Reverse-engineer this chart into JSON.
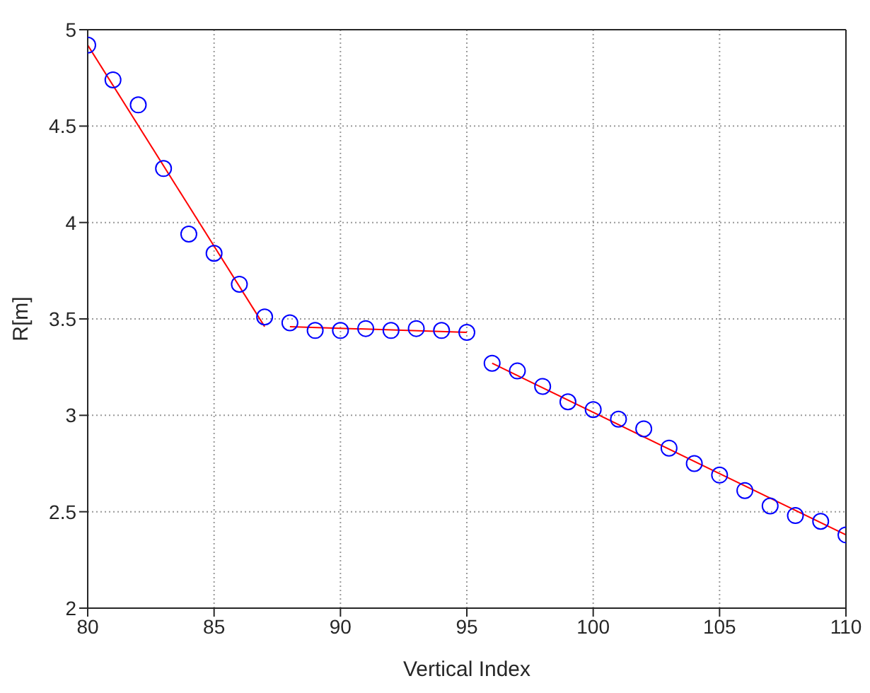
{
  "chart_data": {
    "type": "scatter",
    "xlabel": "Vertical Index",
    "ylabel": "R[m]",
    "xlim": [
      80,
      110
    ],
    "xticks": [
      80,
      85,
      90,
      95,
      100,
      105,
      110
    ],
    "ylim": [
      2,
      5
    ],
    "yticks": [
      2,
      2.5,
      3,
      3.5,
      4,
      4.5,
      5
    ],
    "grid": true,
    "legend": false,
    "series": [
      {
        "marker": "circle",
        "color": "#0000ff",
        "x": [
          80,
          81,
          82,
          83,
          84,
          85,
          86,
          87,
          88,
          89,
          90,
          91,
          92,
          93,
          94,
          95,
          96,
          97,
          98,
          99,
          100,
          101,
          102,
          103,
          104,
          105,
          106,
          107,
          108,
          109,
          110
        ],
        "values": [
          4.92,
          4.74,
          4.61,
          4.28,
          3.94,
          3.84,
          3.68,
          3.51,
          3.48,
          3.44,
          3.44,
          3.45,
          3.44,
          3.45,
          3.44,
          3.43,
          3.27,
          3.23,
          3.15,
          3.07,
          3.03,
          2.98,
          2.93,
          2.83,
          2.75,
          2.69,
          2.61,
          2.53,
          2.48,
          2.45,
          2.38
        ]
      },
      {
        "type": "line",
        "marker": "none",
        "line_style": "solid",
        "color": "#ff0000",
        "x": [
          80,
          87
        ],
        "values": [
          4.92,
          3.46
        ]
      },
      {
        "type": "line",
        "marker": "none",
        "line_style": "solid",
        "color": "#ff0000",
        "x": [
          88,
          95
        ],
        "values": [
          3.46,
          3.43
        ]
      },
      {
        "type": "line",
        "marker": "none",
        "line_style": "solid",
        "color": "#ff0000",
        "x": [
          96,
          110
        ],
        "values": [
          3.27,
          2.38
        ]
      }
    ]
  }
}
